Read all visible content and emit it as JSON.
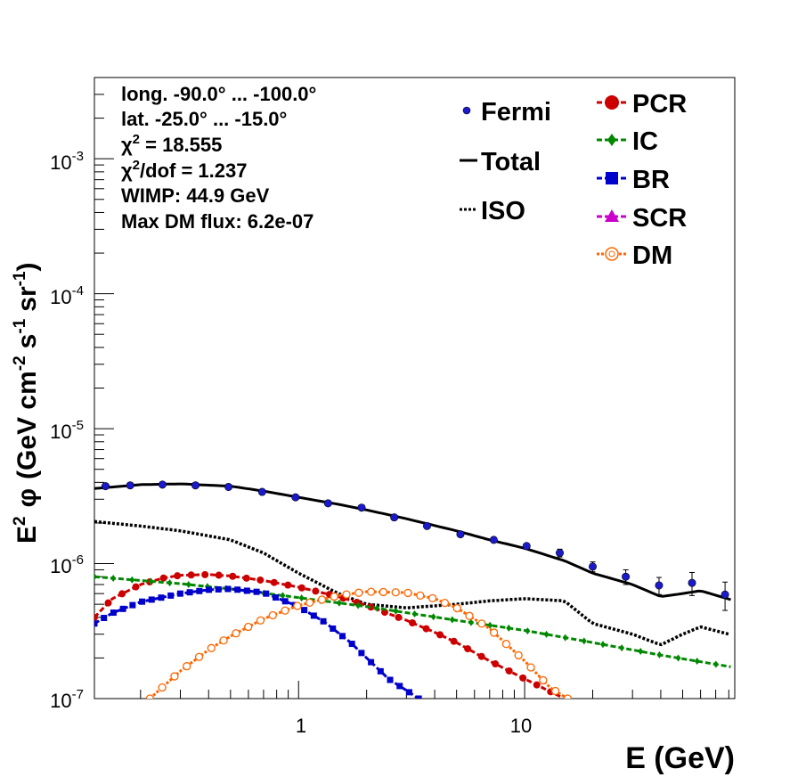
{
  "chart_data": {
    "type": "line",
    "title": "",
    "xlabel": "E (GeV)",
    "ylabel_parts": {
      "e": "E",
      "e_sup": "2",
      "phi": "φ",
      "open": "(GeV cm",
      "cm_sup": "-2",
      "s": "s",
      "s_sup": "-1",
      "sr": "sr",
      "sr_sup": "-1",
      "close": ")"
    },
    "x_scale": "log",
    "y_scale": "log",
    "xlim": [
      0.125,
      85
    ],
    "ylim": [
      1e-07,
      0.004
    ],
    "x_tick_labels": [
      {
        "value": 1,
        "label": "1"
      },
      {
        "value": 10,
        "label": "10"
      }
    ],
    "y_tick_labels": [
      {
        "value": 1e-07,
        "base": "10",
        "exp": "-7"
      },
      {
        "value": 1e-06,
        "base": "10",
        "exp": "-6"
      },
      {
        "value": 1e-05,
        "base": "10",
        "exp": "-5"
      },
      {
        "value": 0.0001,
        "base": "10",
        "exp": "-4"
      },
      {
        "value": 0.001,
        "base": "10",
        "exp": "-3"
      }
    ],
    "info": {
      "longitude": "long. -90.0° ... -100.0°",
      "latitude": "lat. -25.0° ... -15.0°",
      "chi2_symbol": "χ",
      "chi2_sup": "2",
      "chi2_value": " = 18.555",
      "chi2dof_symbol": "χ",
      "chi2dof_sup": "2",
      "chi2dof_value": "/dof = 1.237",
      "wimp": "WIMP: 44.9 GeV",
      "max_dm_flux": "Max DM flux: 6.2e-07"
    },
    "legend": {
      "fermi": "Fermi",
      "total": "Total",
      "iso": "ISO",
      "pcr": "PCR",
      "ic": "IC",
      "br": "BR",
      "scr": "SCR",
      "dm": "DM"
    },
    "colors": {
      "fermi": "#1a1acc",
      "total": "#000000",
      "iso": "#000000",
      "pcr": "#cc0000",
      "ic": "#008800",
      "br": "#0000cc",
      "scr": "#cc00cc",
      "dm": "#ff6600"
    },
    "fermi": {
      "x": [
        0.14,
        0.18,
        0.25,
        0.35,
        0.49,
        0.69,
        0.97,
        1.35,
        1.9,
        2.65,
        3.7,
        5.2,
        7.3,
        10.2,
        14.3,
        20.0,
        28.0,
        39.3,
        55.0,
        77.0
      ],
      "y": [
        3.75e-06,
        3.8e-06,
        3.85e-06,
        3.8e-06,
        3.7e-06,
        3.4e-06,
        3.1e-06,
        2.8e-06,
        2.6e-06,
        2.2e-06,
        1.9e-06,
        1.65e-06,
        1.5e-06,
        1.35e-06,
        1.2e-06,
        9.5e-07,
        8e-07,
        6.9e-07,
        7.2e-07,
        5.9e-07
      ],
      "y_err": [
        0,
        0,
        0,
        0,
        0,
        0,
        0,
        0,
        0,
        0,
        0,
        0,
        0,
        0,
        8e-08,
        8e-08,
        1e-07,
        1e-07,
        1.4e-07,
        1.4e-07
      ]
    },
    "series": [
      {
        "key": "total",
        "x": [
          0.125,
          0.2,
          0.3,
          0.5,
          0.7,
          1.0,
          1.5,
          2.0,
          3.0,
          5.0,
          7.0,
          10.0,
          15.0,
          20.0,
          30.0,
          40.0,
          50.0,
          60.0,
          85.0
        ],
        "y": [
          3.6e-06,
          3.85e-06,
          3.9e-06,
          3.75e-06,
          3.45e-06,
          3.1e-06,
          2.75e-06,
          2.5e-06,
          2.15e-06,
          1.75e-06,
          1.5e-06,
          1.3e-06,
          1.05e-06,
          8.5e-07,
          7e-07,
          5.7e-07,
          6e-07,
          6.3e-07,
          5.3e-07
        ]
      },
      {
        "key": "iso",
        "x": [
          0.125,
          0.2,
          0.3,
          0.5,
          0.7,
          1.0,
          1.5,
          2.0,
          3.0,
          5.0,
          7.0,
          10.0,
          15.0,
          20.0,
          30.0,
          40.0,
          50.0,
          60.0,
          80.0
        ],
        "y": [
          2.05e-06,
          1.9e-06,
          1.75e-06,
          1.5e-06,
          1.2e-06,
          8.5e-07,
          6e-07,
          5e-07,
          4.7e-07,
          5e-07,
          5.3e-07,
          5.5e-07,
          5.3e-07,
          3.6e-07,
          3e-07,
          2.5e-07,
          3e-07,
          3.4e-07,
          3e-07
        ]
      },
      {
        "key": "pcr",
        "x": [
          0.125,
          0.15,
          0.2,
          0.25,
          0.3,
          0.4,
          0.5,
          0.7,
          1.0,
          1.5,
          2.0,
          3.0,
          4.0,
          5.0,
          7.0,
          10.0,
          15.0
        ],
        "y": [
          4e-07,
          5.5e-07,
          7e-07,
          7.8e-07,
          8.2e-07,
          8.3e-07,
          8.1e-07,
          7.5e-07,
          6.7e-07,
          5.7e-07,
          4.9e-07,
          3.8e-07,
          3.1e-07,
          2.6e-07,
          1.9e-07,
          1.4e-07,
          1e-07
        ]
      },
      {
        "key": "ic",
        "x": [
          0.125,
          0.2,
          0.3,
          0.5,
          1.0,
          2.0,
          5.0,
          10.0,
          20.0,
          40.0,
          85.0
        ],
        "y": [
          8e-07,
          7.5e-07,
          7.1e-07,
          6.5e-07,
          5.6e-07,
          4.8e-07,
          3.8e-07,
          3.2e-07,
          2.6e-07,
          2.1e-07,
          1.7e-07
        ]
      },
      {
        "key": "br",
        "x": [
          0.125,
          0.15,
          0.2,
          0.3,
          0.4,
          0.5,
          0.7,
          1.0,
          1.3,
          1.7,
          2.0,
          2.5,
          3.0,
          3.4
        ],
        "y": [
          3.6e-07,
          4.3e-07,
          5.2e-07,
          6e-07,
          6.4e-07,
          6.5e-07,
          6.1e-07,
          4.8e-07,
          3.7e-07,
          2.6e-07,
          2e-07,
          1.4e-07,
          1.15e-07,
          1e-07
        ]
      },
      {
        "key": "dm",
        "x": [
          0.22,
          0.3,
          0.4,
          0.5,
          0.7,
          1.0,
          1.5,
          2.0,
          3.0,
          4.0,
          5.0,
          7.0,
          10.0,
          13.0,
          15.5
        ],
        "y": [
          1e-07,
          1.6e-07,
          2.3e-07,
          2.9e-07,
          3.9e-07,
          4.9e-07,
          5.8e-07,
          6.2e-07,
          6.1e-07,
          5.5e-07,
          4.7e-07,
          3.3e-07,
          1.9e-07,
          1.2e-07,
          1e-07
        ]
      }
    ]
  }
}
